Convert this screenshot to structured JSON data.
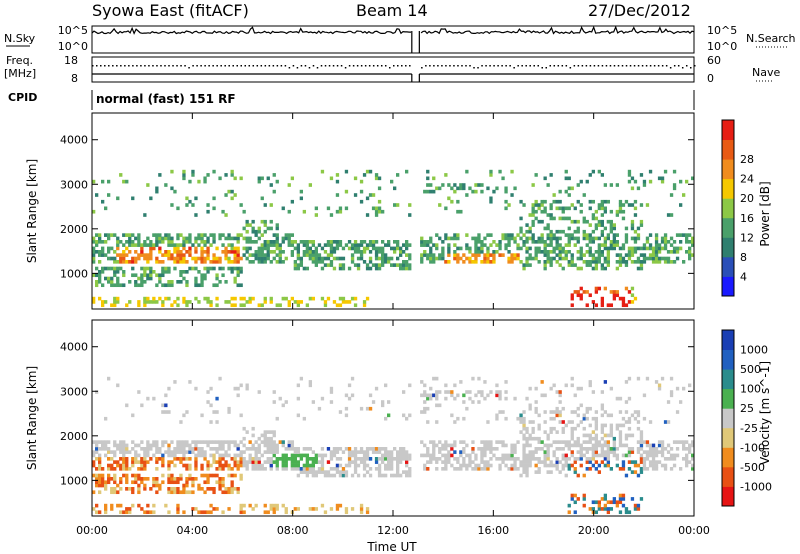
{
  "header": {
    "station": "Syowa East (fitACF)",
    "beam": "Beam 14",
    "date": "27/Dec/2012"
  },
  "strips": {
    "nsky": {
      "label": "N.Sky",
      "ticks": [
        "10^5",
        "10^0"
      ],
      "right_label": "N.Search",
      "right_ticks": [
        "10^5",
        "10^0"
      ]
    },
    "freq": {
      "label_line1": "Freq.",
      "label_line2": "[MHz]",
      "ticks": [
        "18",
        "8"
      ],
      "right_label": "Nave",
      "right_ticks": [
        "60",
        "0"
      ]
    },
    "cpid": {
      "label": "CPID",
      "text": "normal (fast) 151 RF"
    }
  },
  "colors": {
    "power": [
      "#1a1aff",
      "#2a4fb8",
      "#2f7f6f",
      "#4aa06a",
      "#8cc846",
      "#f5c800",
      "#f08c1e",
      "#e85a14",
      "#e61e14"
    ],
    "velocity": [
      "#1a3fb4",
      "#2060c0",
      "#2a8c8c",
      "#4ab050",
      "#c8c8c8",
      "#e0c878",
      "#f08c1e",
      "#e85014",
      "#e61414"
    ]
  },
  "chart_data": [
    {
      "type": "heatmap",
      "name": "power",
      "xlabel": "",
      "ylabel": "Slant Range [km]",
      "x_ticks": [
        "00:00",
        "04:00",
        "08:00",
        "12:00",
        "16:00",
        "20:00",
        "00:00"
      ],
      "y_ticks": [
        "1000",
        "2000",
        "3000",
        "4000"
      ],
      "xlim": [
        0,
        24
      ],
      "ylim": [
        200,
        4600
      ],
      "colorbar_label": "Power [dB]",
      "colorbar_ticks": [
        "4",
        "8",
        "12",
        "16",
        "20",
        "24",
        "28"
      ],
      "data_gap_ut": [
        12.75,
        13.05
      ]
    },
    {
      "type": "heatmap",
      "name": "velocity",
      "xlabel": "Time UT",
      "ylabel": "Slant Range [km]",
      "x_ticks": [
        "00:00",
        "04:00",
        "08:00",
        "12:00",
        "16:00",
        "20:00",
        "00:00"
      ],
      "y_ticks": [
        "1000",
        "2000",
        "3000",
        "4000"
      ],
      "xlim": [
        0,
        24
      ],
      "ylim": [
        200,
        4600
      ],
      "colorbar_label": "Velocity [m s^-1]",
      "colorbar_ticks": [
        "1000",
        "500",
        "100",
        "25",
        "-25",
        "-100",
        "-500",
        "-1000"
      ],
      "data_gap_ut": [
        12.75,
        13.05
      ]
    }
  ]
}
